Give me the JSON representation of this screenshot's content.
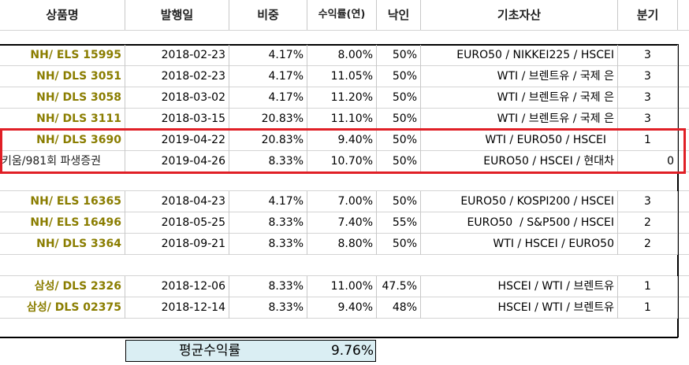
{
  "headers": {
    "name": "상품명",
    "issue_date": "발행일",
    "weight": "비중",
    "yield": "수익률(연)",
    "knock_in": "낙인",
    "underlying": "기초자산",
    "quarter": "분기"
  },
  "rows": [
    {
      "name": "NH/ ELS 15995",
      "date": "2018-02-23",
      "weight": "4.17%",
      "yield": "8.00%",
      "ki": "50%",
      "underlying": "EURO50 / NIKKEI225 / HSCEI",
      "quarter": "3"
    },
    {
      "name": "NH/ DLS 3051",
      "date": "2018-02-23",
      "weight": "4.17%",
      "yield": "11.05%",
      "ki": "50%",
      "underlying": "WTI / 브렌트유 / 국제 은",
      "quarter": "3"
    },
    {
      "name": "NH/ DLS 3058",
      "date": "2018-03-02",
      "weight": "4.17%",
      "yield": "11.20%",
      "ki": "50%",
      "underlying": "WTI / 브렌트유 / 국제 은",
      "quarter": "3"
    },
    {
      "name": "NH/ DLS 3111",
      "date": "2018-03-15",
      "weight": "20.83%",
      "yield": "11.10%",
      "ki": "50%",
      "underlying": "WTI / 브렌트유 / 국제 은",
      "quarter": "3"
    },
    {
      "name": "NH/ DLS 3690",
      "date": "2019-04-22",
      "weight": "20.83%",
      "yield": "9.40%",
      "ki": "50%",
      "underlying": "WTI / EURO50 / HSCEI",
      "quarter": "1"
    },
    {
      "name": "키움/981회 파생증권",
      "date": "2019-04-26",
      "weight": "8.33%",
      "yield": "10.70%",
      "ki": "50%",
      "underlying": "EURO50 / HSCEI / 현대차",
      "quarter": "0"
    },
    {
      "name": "NH/ ELS 16365",
      "date": "2018-04-23",
      "weight": "4.17%",
      "yield": "7.00%",
      "ki": "50%",
      "underlying": "EURO50 / KOSPI200 / HSCEI",
      "quarter": "3"
    },
    {
      "name": "NH/ ELS 16496",
      "date": "2018-05-25",
      "weight": "8.33%",
      "yield": "7.40%",
      "ki": "55%",
      "underlying": "EURO50  / S&P500 / HSCEI",
      "quarter": "2"
    },
    {
      "name": "NH/ DLS 3364",
      "date": "2018-09-21",
      "weight": "8.33%",
      "yield": "8.80%",
      "ki": "50%",
      "underlying": "WTI / HSCEI / EURO50",
      "quarter": "2"
    },
    {
      "name": "삼성/ DLS 2326",
      "date": "2018-12-06",
      "weight": "8.33%",
      "yield": "11.00%",
      "ki": "47.5%",
      "underlying": "HSCEI / WTI / 브렌트유",
      "quarter": "1"
    },
    {
      "name": "삼성/ DLS 02375",
      "date": "2018-12-14",
      "weight": "8.33%",
      "yield": "9.40%",
      "ki": "48%",
      "underlying": "HSCEI / WTI / 브렌트유",
      "quarter": "1"
    }
  ],
  "summary": {
    "label": "평균수익률",
    "value": "9.76%"
  },
  "colors": {
    "name_text": "#8a7d00",
    "highlight_border": "#e01f26",
    "summary_fill": "#daeef3"
  }
}
